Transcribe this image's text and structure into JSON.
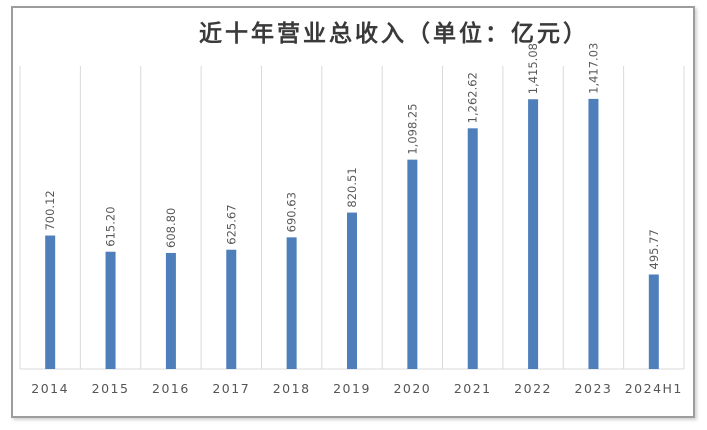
{
  "chart_data": {
    "type": "bar",
    "title": "近十年营业总收入（单位：亿元）",
    "xlabel": "",
    "ylabel": "",
    "categories": [
      "2014",
      "2015",
      "2016",
      "2017",
      "2018",
      "2019",
      "2020",
      "2021",
      "2022",
      "2023",
      "2024H1"
    ],
    "values": [
      700.12,
      615.2,
      608.8,
      625.67,
      690.63,
      820.51,
      1098.25,
      1262.62,
      1415.08,
      1417.03,
      495.77
    ],
    "data_labels": [
      "700.12",
      "615.20",
      "608.80",
      "625.67",
      "690.63",
      "820.51",
      "1,098.25",
      "1,262.62",
      "1,415.08",
      "1,417.03",
      "495.77"
    ],
    "ylim": [
      0,
      1600
    ],
    "grid": "vertical",
    "legend": "none",
    "bar_color": "#4f7fba",
    "grid_color": "#d9d9d9"
  }
}
